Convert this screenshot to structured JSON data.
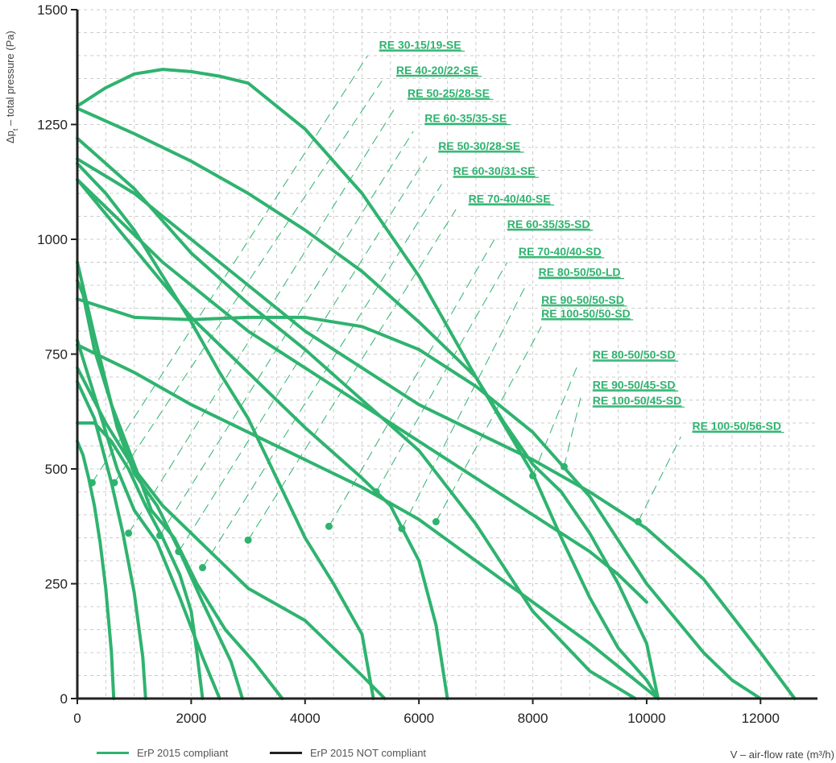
{
  "chart_data": {
    "type": "line",
    "ylabel_prefix": "Δp",
    "ylabel_sub": "t",
    "ylabel_rest": " – total pressure (Pa)",
    "xlabel": "V – air-flow rate (m³/h)",
    "xlim": [
      0,
      13000
    ],
    "ylim": [
      0,
      1500
    ],
    "xticks": [
      0,
      2000,
      4000,
      6000,
      8000,
      10000,
      12000
    ],
    "yticks": [
      0,
      250,
      500,
      750,
      1000,
      1250,
      1500
    ],
    "grid": true,
    "colors": {
      "compliant": "#2fb36f",
      "not_compliant": "#222222",
      "grid": "#cccccc"
    },
    "legend": [
      {
        "label": "ErP 2015 compliant",
        "color": "#2fb36f"
      },
      {
        "label": "ErP 2015 NOT compliant",
        "color": "#222222"
      }
    ],
    "series": [
      {
        "name": "RE 30-15/19-SE",
        "points": [
          [
            0,
            560
          ],
          [
            100,
            530
          ],
          [
            200,
            480
          ],
          [
            300,
            420
          ],
          [
            400,
            340
          ],
          [
            500,
            240
          ],
          [
            600,
            100
          ],
          [
            640,
            0
          ]
        ],
        "marker": [
          260,
          470
        ],
        "label_at": [
          5300,
          1415
        ]
      },
      {
        "name": "RE 40-20/22-SE",
        "points": [
          [
            0,
            690
          ],
          [
            300,
            610
          ],
          [
            600,
            470
          ],
          [
            800,
            360
          ],
          [
            1000,
            230
          ],
          [
            1150,
            90
          ],
          [
            1200,
            0
          ]
        ],
        "marker": [
          650,
          470
        ],
        "label_at": [
          5600,
          1360
        ]
      },
      {
        "name": "RE 50-25/28-SE",
        "points": [
          [
            0,
            600
          ],
          [
            300,
            600
          ],
          [
            600,
            560
          ],
          [
            900,
            500
          ],
          [
            1200,
            420
          ],
          [
            1500,
            350
          ],
          [
            1800,
            270
          ],
          [
            2000,
            190
          ],
          [
            2100,
            100
          ],
          [
            2200,
            0
          ]
        ],
        "marker": [
          900,
          360
        ],
        "label_at": [
          5800,
          1310
        ]
      },
      {
        "name": "RE 60-35/35-SE",
        "points": [
          [
            0,
            780
          ],
          [
            300,
            660
          ],
          [
            700,
            500
          ],
          [
            1000,
            410
          ],
          [
            1400,
            340
          ],
          [
            1800,
            220
          ],
          [
            2200,
            90
          ],
          [
            2500,
            0
          ]
        ],
        "marker": [
          1450,
          355
        ],
        "label_at": [
          6100,
          1255
        ]
      },
      {
        "name": "RE 50-30/28-SE",
        "points": [
          [
            0,
            950
          ],
          [
            300,
            790
          ],
          [
            700,
            590
          ],
          [
            1000,
            490
          ],
          [
            1400,
            420
          ],
          [
            1800,
            320
          ],
          [
            2200,
            210
          ],
          [
            2700,
            80
          ],
          [
            2900,
            0
          ]
        ],
        "marker": [
          1780,
          320
        ],
        "label_at": [
          6340,
          1195
        ]
      },
      {
        "name": "RE 60-30/31-SE",
        "points": [
          [
            0,
            910
          ],
          [
            100,
            880
          ],
          [
            300,
            760
          ],
          [
            600,
            640
          ],
          [
            1000,
            510
          ],
          [
            1300,
            410
          ],
          [
            1700,
            350
          ],
          [
            2100,
            250
          ],
          [
            2600,
            150
          ],
          [
            3100,
            80
          ],
          [
            3600,
            0
          ]
        ],
        "marker": [
          2200,
          285
        ],
        "label_at": [
          6600,
          1140
        ]
      },
      {
        "name": "RE 70-40/40-SE",
        "points": [
          [
            0,
            720
          ],
          [
            500,
            600
          ],
          [
            1000,
            500
          ],
          [
            1500,
            420
          ],
          [
            2000,
            360
          ],
          [
            3000,
            240
          ],
          [
            4000,
            170
          ],
          [
            5000,
            50
          ],
          [
            5400,
            0
          ]
        ],
        "marker": [
          3000,
          345
        ],
        "label_at": [
          6870,
          1080
        ]
      },
      {
        "name": "RE 60-35/35-SD",
        "points": [
          [
            0,
            1165
          ],
          [
            500,
            1100
          ],
          [
            1000,
            1020
          ],
          [
            1500,
            920
          ],
          [
            2000,
            820
          ],
          [
            2500,
            710
          ],
          [
            3000,
            610
          ],
          [
            3500,
            480
          ],
          [
            4000,
            350
          ],
          [
            4500,
            250
          ],
          [
            5000,
            140
          ],
          [
            5200,
            0
          ]
        ],
        "marker": [
          4420,
          375
        ],
        "label_at": [
          7550,
          1025
        ]
      },
      {
        "name": "RE 70-40/40-SD",
        "points": [
          [
            0,
            1130
          ],
          [
            1000,
            980
          ],
          [
            2000,
            830
          ],
          [
            3000,
            710
          ],
          [
            4000,
            590
          ],
          [
            5000,
            480
          ],
          [
            5500,
            420
          ],
          [
            6000,
            300
          ],
          [
            6300,
            160
          ],
          [
            6500,
            0
          ]
        ],
        "marker": [
          5250,
          450
        ],
        "label_at": [
          7750,
          965
        ]
      },
      {
        "name": "RE 80-50/50-LD",
        "points": [
          [
            0,
            1220
          ],
          [
            1000,
            1110
          ],
          [
            2000,
            970
          ],
          [
            3000,
            860
          ],
          [
            4000,
            760
          ],
          [
            5000,
            650
          ],
          [
            6000,
            540
          ],
          [
            7000,
            380
          ],
          [
            8000,
            190
          ],
          [
            9000,
            60
          ],
          [
            9800,
            0
          ]
        ],
        "marker": [
          5700,
          370
        ],
        "label_at": [
          8100,
          920
        ]
      },
      {
        "name": "RE 90-50/50-SD",
        "points": [
          [
            0,
            770
          ],
          [
            1000,
            710
          ],
          [
            2000,
            640
          ],
          [
            3000,
            580
          ],
          [
            4000,
            520
          ],
          [
            5000,
            460
          ],
          [
            6000,
            390
          ],
          [
            7000,
            300
          ],
          [
            8000,
            210
          ],
          [
            9000,
            120
          ],
          [
            10000,
            20
          ],
          [
            10200,
            0
          ]
        ],
        "marker": [
          6300,
          385
        ],
        "label_at": [
          8150,
          860
        ]
      },
      {
        "name": "RE 100-50/50-SD",
        "points": [
          [
            0,
            870
          ],
          [
            1000,
            830
          ],
          [
            2000,
            825
          ],
          [
            3000,
            830
          ],
          [
            4000,
            830
          ],
          [
            5000,
            810
          ],
          [
            6000,
            760
          ],
          [
            7000,
            680
          ],
          [
            8000,
            580
          ],
          [
            9000,
            440
          ],
          [
            10000,
            250
          ],
          [
            11000,
            100
          ],
          [
            11500,
            40
          ],
          [
            12000,
            0
          ]
        ],
        "label_at": [
          8150,
          830
        ]
      },
      {
        "name": "RE 80-50/50-SD",
        "points": [
          [
            0,
            1285
          ],
          [
            1000,
            1230
          ],
          [
            2000,
            1170
          ],
          [
            3000,
            1100
          ],
          [
            4000,
            1020
          ],
          [
            5000,
            930
          ],
          [
            6000,
            820
          ],
          [
            7000,
            700
          ],
          [
            8000,
            490
          ],
          [
            8500,
            350
          ],
          [
            9000,
            220
          ],
          [
            9500,
            110
          ],
          [
            10000,
            40
          ],
          [
            10200,
            0
          ]
        ],
        "marker": [
          8000,
          485
        ],
        "label_at": [
          9050,
          740
        ]
      },
      {
        "name": "RE 90-50/45-SD",
        "points": [
          [
            0,
            1290
          ],
          [
            500,
            1330
          ],
          [
            1000,
            1360
          ],
          [
            1500,
            1370
          ],
          [
            2000,
            1365
          ],
          [
            2500,
            1355
          ],
          [
            3000,
            1340
          ],
          [
            4000,
            1240
          ],
          [
            5000,
            1100
          ],
          [
            6000,
            920
          ],
          [
            7000,
            700
          ],
          [
            7500,
            600
          ],
          [
            8000,
            510
          ],
          [
            8500,
            450
          ],
          [
            9000,
            360
          ],
          [
            9500,
            250
          ],
          [
            10000,
            120
          ],
          [
            10200,
            0
          ]
        ],
        "marker": [
          8550,
          505
        ],
        "label_at": [
          9050,
          675
        ]
      },
      {
        "name": "RE 100-50/45-SD",
        "points": [
          [
            0,
            1130
          ],
          [
            1500,
            950
          ],
          [
            3000,
            800
          ],
          [
            4500,
            680
          ],
          [
            6000,
            560
          ],
          [
            7500,
            440
          ],
          [
            8500,
            360
          ],
          [
            9000,
            320
          ],
          [
            9500,
            270
          ],
          [
            10000,
            210
          ]
        ],
        "label_at": [
          9050,
          640
        ]
      },
      {
        "name": "RE 100-50/56-SD",
        "points": [
          [
            0,
            1175
          ],
          [
            1000,
            1100
          ],
          [
            2000,
            1000
          ],
          [
            3000,
            900
          ],
          [
            4000,
            800
          ],
          [
            5000,
            720
          ],
          [
            6000,
            640
          ],
          [
            7000,
            580
          ],
          [
            8000,
            520
          ],
          [
            9000,
            450
          ],
          [
            10000,
            370
          ],
          [
            11000,
            260
          ],
          [
            12000,
            100
          ],
          [
            12600,
            0
          ]
        ],
        "marker": [
          9850,
          385
        ],
        "label_at": [
          10800,
          585
        ]
      }
    ],
    "connectors": [
      {
        "from": [
          260,
          470
        ],
        "to": [
          5100,
          1400
        ]
      },
      {
        "from": [
          650,
          470
        ],
        "to": [
          5350,
          1345
        ]
      },
      {
        "from": [
          900,
          360
        ],
        "to": [
          5600,
          1290
        ]
      },
      {
        "from": [
          1450,
          355
        ],
        "to": [
          5900,
          1235
        ]
      },
      {
        "from": [
          1780,
          320
        ],
        "to": [
          6140,
          1180
        ]
      },
      {
        "from": [
          2200,
          285
        ],
        "to": [
          6400,
          1120
        ]
      },
      {
        "from": [
          3000,
          345
        ],
        "to": [
          6650,
          1065
        ]
      },
      {
        "from": [
          4420,
          375
        ],
        "to": [
          7350,
          1005
        ]
      },
      {
        "from": [
          5250,
          450
        ],
        "to": [
          7550,
          950
        ]
      },
      {
        "from": [
          5700,
          370
        ],
        "to": [
          7900,
          905
        ]
      },
      {
        "from": [
          6300,
          385
        ],
        "to": [
          8150,
          810
        ]
      },
      {
        "from": [
          8000,
          485
        ],
        "to": [
          8800,
          730
        ]
      },
      {
        "from": [
          8550,
          505
        ],
        "to": [
          8850,
          660
        ]
      },
      {
        "from": [
          9850,
          385
        ],
        "to": [
          10600,
          570
        ]
      }
    ]
  }
}
